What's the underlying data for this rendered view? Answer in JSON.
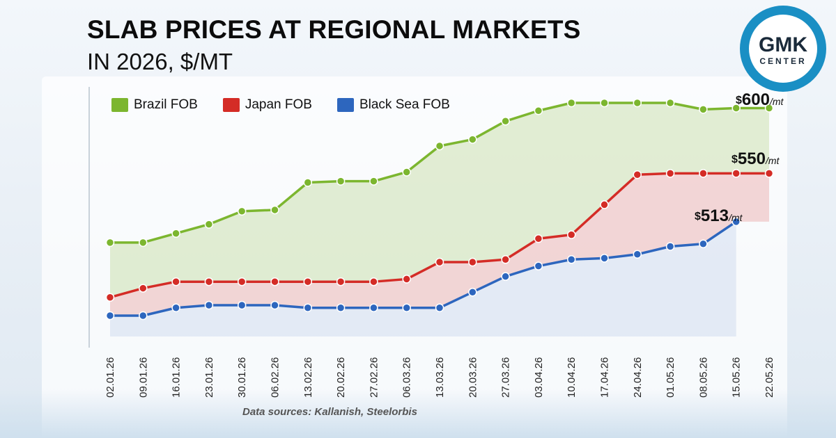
{
  "header": {
    "title": "SLAB PRICES AT REGIONAL MARKETS",
    "subtitle": "IN 2026, $/MT"
  },
  "logo": {
    "line1": "GMK",
    "line2": "CENTER"
  },
  "source_note": "Data sources: Kallanish, Steelorbis",
  "price_labels": [
    {
      "currency": "$",
      "value": "600",
      "unit": "/mt"
    },
    {
      "currency": "$",
      "value": "550",
      "unit": "/mt"
    },
    {
      "currency": "$",
      "value": "513",
      "unit": "/mt"
    }
  ],
  "colors": {
    "brazil": "#7cb62f",
    "japan": "#d42c26",
    "blacksea": "#2d66be",
    "logo": "#1a8fc4"
  },
  "chart_data": {
    "type": "line",
    "title": "SLAB PRICES AT REGIONAL MARKETS",
    "subtitle": "IN 2026, $/MT",
    "xlabel": "",
    "ylabel": "",
    "ylim": [
      420,
      610
    ],
    "grid": false,
    "legend": "top-left",
    "categories": [
      "02.01.26",
      "09.01.26",
      "16.01.26",
      "23.01.26",
      "30.01.26",
      "06.02.26",
      "13.02.26",
      "20.02.26",
      "27.02.26",
      "06.03.26",
      "13.03.26",
      "20.03.26",
      "27.03.26",
      "03.04.26",
      "10.04.26",
      "17.04.26",
      "24.04.26",
      "01.05.26",
      "08.05.26",
      "15.05.26",
      "22.05.26"
    ],
    "series": [
      {
        "name": "Brazil FOB",
        "color": "#7cb62f",
        "values": [
          497,
          497,
          504,
          511,
          521,
          522,
          543,
          544,
          544,
          551,
          571,
          576,
          590,
          598,
          604,
          604,
          604,
          604,
          599,
          600,
          600
        ]
      },
      {
        "name": "Japan FOB",
        "color": "#d42c26",
        "values": [
          455,
          462,
          467,
          467,
          467,
          467,
          467,
          467,
          467,
          469,
          482,
          482,
          484,
          500,
          503,
          526,
          549,
          550,
          550,
          550,
          550
        ]
      },
      {
        "name": "Black Sea FOB",
        "color": "#2d66be",
        "values": [
          441,
          441,
          447,
          449,
          449,
          449,
          447,
          447,
          447,
          447,
          447,
          459,
          471,
          479,
          484,
          485,
          488,
          494,
          496,
          513,
          null
        ]
      }
    ]
  }
}
